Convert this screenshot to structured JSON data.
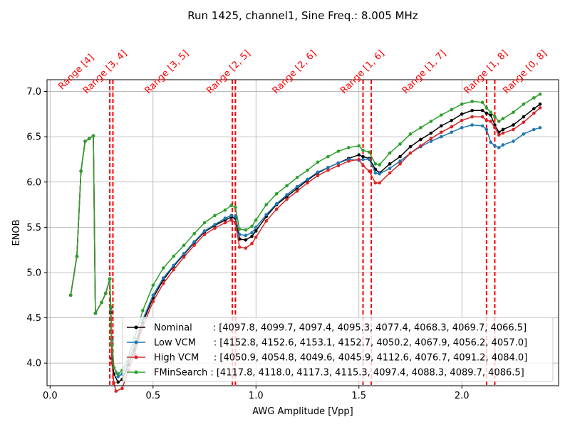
{
  "chart_data": {
    "type": "line",
    "title": "Run 1425, channel1, Sine Freq.: 8.005 MHz",
    "xlabel": "AWG Amplitude [Vpp]",
    "ylabel": "ENOB",
    "xlim": [
      -0.015,
      2.47
    ],
    "ylim": [
      3.75,
      7.13
    ],
    "xticks": [
      0.0,
      0.5,
      1.0,
      1.5,
      2.0
    ],
    "xtick_labels": [
      "0.0",
      "0.5",
      "1.0",
      "1.5",
      "2.0"
    ],
    "yticks": [
      4.0,
      4.5,
      5.0,
      5.5,
      6.0,
      6.5,
      7.0
    ],
    "ytick_labels": [
      "4.0",
      "4.5",
      "5.0",
      "5.5",
      "6.0",
      "6.5",
      "7.0"
    ],
    "grid": true,
    "legend_position": "lower-right",
    "range_lines": [
      0.29,
      0.305,
      0.885,
      0.9,
      1.52,
      1.56,
      2.12,
      2.16
    ],
    "range_lines_color": "#ff0000",
    "range_labels": [
      {
        "x": 0.15,
        "label": "Range [4]"
      },
      {
        "x": 0.29,
        "label": "Range [3, 4]"
      },
      {
        "x": 0.59,
        "label": "Range [3, 5]"
      },
      {
        "x": 0.89,
        "label": "Range [2, 5]"
      },
      {
        "x": 1.21,
        "label": "Range [2, 6]"
      },
      {
        "x": 1.54,
        "label": "Range [1, 6]"
      },
      {
        "x": 1.84,
        "label": "Range [1, 7]"
      },
      {
        "x": 2.14,
        "label": "Range [1, 8]"
      },
      {
        "x": 2.33,
        "label": "Range [0, 8]"
      }
    ],
    "series": [
      {
        "name": "Nominal",
        "legend_label": "Nominal       : [4097.8, 4099.7, 4097.4, 4095.3, 4077.4, 4068.3, 4069.7, 4066.5]",
        "color": "#000000",
        "points": [
          [
            0.1,
            4.75
          ],
          [
            0.13,
            5.18
          ],
          [
            0.15,
            6.12
          ],
          [
            0.17,
            6.45
          ],
          [
            0.19,
            6.48
          ],
          [
            0.21,
            6.51
          ],
          [
            0.22,
            4.55
          ],
          [
            0.25,
            4.67
          ],
          [
            0.27,
            4.77
          ],
          [
            0.29,
            4.93
          ],
          [
            0.295,
            4.56
          ],
          [
            0.3,
            4.05
          ],
          [
            0.31,
            3.88
          ],
          [
            0.33,
            3.79
          ],
          [
            0.35,
            3.82
          ],
          [
            0.38,
            3.98
          ],
          [
            0.41,
            4.15
          ],
          [
            0.45,
            4.45
          ],
          [
            0.5,
            4.72
          ],
          [
            0.55,
            4.92
          ],
          [
            0.6,
            5.07
          ],
          [
            0.65,
            5.2
          ],
          [
            0.7,
            5.33
          ],
          [
            0.75,
            5.45
          ],
          [
            0.8,
            5.52
          ],
          [
            0.85,
            5.58
          ],
          [
            0.88,
            5.61
          ],
          [
            0.9,
            5.6
          ],
          [
            0.92,
            5.37
          ],
          [
            0.95,
            5.36
          ],
          [
            0.98,
            5.4
          ],
          [
            1.0,
            5.46
          ],
          [
            1.05,
            5.62
          ],
          [
            1.1,
            5.75
          ],
          [
            1.15,
            5.84
          ],
          [
            1.2,
            5.93
          ],
          [
            1.25,
            6.02
          ],
          [
            1.3,
            6.1
          ],
          [
            1.35,
            6.16
          ],
          [
            1.4,
            6.21
          ],
          [
            1.45,
            6.26
          ],
          [
            1.5,
            6.3
          ],
          [
            1.52,
            6.28
          ],
          [
            1.55,
            6.26
          ],
          [
            1.58,
            6.14
          ],
          [
            1.6,
            6.1
          ],
          [
            1.65,
            6.2
          ],
          [
            1.7,
            6.28
          ],
          [
            1.75,
            6.39
          ],
          [
            1.8,
            6.47
          ],
          [
            1.85,
            6.54
          ],
          [
            1.9,
            6.62
          ],
          [
            1.95,
            6.68
          ],
          [
            2.0,
            6.75
          ],
          [
            2.05,
            6.79
          ],
          [
            2.1,
            6.79
          ],
          [
            2.12,
            6.76
          ],
          [
            2.14,
            6.74
          ],
          [
            2.16,
            6.63
          ],
          [
            2.18,
            6.55
          ],
          [
            2.2,
            6.58
          ],
          [
            2.25,
            6.63
          ],
          [
            2.3,
            6.72
          ],
          [
            2.35,
            6.81
          ],
          [
            2.38,
            6.86
          ]
        ]
      },
      {
        "name": "Low VCM",
        "legend_label": "Low VCM      : [4152.8, 4152.6, 4153.1, 4152.7, 4050.2, 4067.9, 4056.2, 4057.0]",
        "color": "#1f77b4",
        "points": [
          [
            0.1,
            4.75
          ],
          [
            0.13,
            5.18
          ],
          [
            0.15,
            6.12
          ],
          [
            0.17,
            6.45
          ],
          [
            0.19,
            6.48
          ],
          [
            0.21,
            6.51
          ],
          [
            0.22,
            4.55
          ],
          [
            0.25,
            4.67
          ],
          [
            0.27,
            4.77
          ],
          [
            0.29,
            4.93
          ],
          [
            0.295,
            4.6
          ],
          [
            0.3,
            4.25
          ],
          [
            0.31,
            3.95
          ],
          [
            0.33,
            3.85
          ],
          [
            0.35,
            3.88
          ],
          [
            0.38,
            4.02
          ],
          [
            0.41,
            4.2
          ],
          [
            0.45,
            4.48
          ],
          [
            0.5,
            4.75
          ],
          [
            0.55,
            4.94
          ],
          [
            0.6,
            5.08
          ],
          [
            0.65,
            5.21
          ],
          [
            0.7,
            5.34
          ],
          [
            0.75,
            5.46
          ],
          [
            0.8,
            5.53
          ],
          [
            0.85,
            5.6
          ],
          [
            0.88,
            5.63
          ],
          [
            0.9,
            5.62
          ],
          [
            0.92,
            5.42
          ],
          [
            0.95,
            5.41
          ],
          [
            0.98,
            5.44
          ],
          [
            1.0,
            5.5
          ],
          [
            1.05,
            5.64
          ],
          [
            1.1,
            5.76
          ],
          [
            1.15,
            5.86
          ],
          [
            1.2,
            5.95
          ],
          [
            1.25,
            6.03
          ],
          [
            1.3,
            6.11
          ],
          [
            1.35,
            6.16
          ],
          [
            1.4,
            6.21
          ],
          [
            1.45,
            6.25
          ],
          [
            1.5,
            6.24
          ],
          [
            1.52,
            6.25
          ],
          [
            1.55,
            6.25
          ],
          [
            1.58,
            6.1
          ],
          [
            1.6,
            6.09
          ],
          [
            1.65,
            6.15
          ],
          [
            1.7,
            6.23
          ],
          [
            1.75,
            6.32
          ],
          [
            1.8,
            6.39
          ],
          [
            1.85,
            6.45
          ],
          [
            1.9,
            6.5
          ],
          [
            1.95,
            6.55
          ],
          [
            2.0,
            6.6
          ],
          [
            2.05,
            6.63
          ],
          [
            2.1,
            6.62
          ],
          [
            2.12,
            6.58
          ],
          [
            2.14,
            6.44
          ],
          [
            2.16,
            6.4
          ],
          [
            2.18,
            6.38
          ],
          [
            2.2,
            6.41
          ],
          [
            2.25,
            6.45
          ],
          [
            2.3,
            6.53
          ],
          [
            2.35,
            6.58
          ],
          [
            2.38,
            6.6
          ]
        ]
      },
      {
        "name": "High VCM",
        "legend_label": "High VCM     : [4050.9, 4054.8, 4049.6, 4045.9, 4112.6, 4076.7, 4091.2, 4084.0]",
        "color": "#d62728",
        "points": [
          [
            0.1,
            4.75
          ],
          [
            0.13,
            5.18
          ],
          [
            0.15,
            6.12
          ],
          [
            0.17,
            6.45
          ],
          [
            0.19,
            6.48
          ],
          [
            0.21,
            6.51
          ],
          [
            0.22,
            4.55
          ],
          [
            0.25,
            4.67
          ],
          [
            0.27,
            4.77
          ],
          [
            0.29,
            4.93
          ],
          [
            0.295,
            4.5
          ],
          [
            0.3,
            4.0
          ],
          [
            0.31,
            3.78
          ],
          [
            0.32,
            3.69
          ],
          [
            0.35,
            3.72
          ],
          [
            0.38,
            3.92
          ],
          [
            0.41,
            4.1
          ],
          [
            0.45,
            4.4
          ],
          [
            0.5,
            4.68
          ],
          [
            0.55,
            4.88
          ],
          [
            0.6,
            5.03
          ],
          [
            0.65,
            5.17
          ],
          [
            0.7,
            5.3
          ],
          [
            0.75,
            5.42
          ],
          [
            0.8,
            5.49
          ],
          [
            0.85,
            5.55
          ],
          [
            0.88,
            5.58
          ],
          [
            0.9,
            5.55
          ],
          [
            0.92,
            5.28
          ],
          [
            0.95,
            5.27
          ],
          [
            0.98,
            5.32
          ],
          [
            1.0,
            5.39
          ],
          [
            1.05,
            5.57
          ],
          [
            1.1,
            5.7
          ],
          [
            1.15,
            5.81
          ],
          [
            1.2,
            5.9
          ],
          [
            1.25,
            5.99
          ],
          [
            1.3,
            6.07
          ],
          [
            1.35,
            6.13
          ],
          [
            1.4,
            6.18
          ],
          [
            1.45,
            6.23
          ],
          [
            1.5,
            6.25
          ],
          [
            1.52,
            6.18
          ],
          [
            1.55,
            6.12
          ],
          [
            1.58,
            5.99
          ],
          [
            1.6,
            5.99
          ],
          [
            1.65,
            6.1
          ],
          [
            1.7,
            6.2
          ],
          [
            1.75,
            6.32
          ],
          [
            1.8,
            6.4
          ],
          [
            1.85,
            6.48
          ],
          [
            1.9,
            6.55
          ],
          [
            1.95,
            6.61
          ],
          [
            2.0,
            6.68
          ],
          [
            2.05,
            6.72
          ],
          [
            2.1,
            6.72
          ],
          [
            2.12,
            6.68
          ],
          [
            2.14,
            6.67
          ],
          [
            2.16,
            6.6
          ],
          [
            2.18,
            6.52
          ],
          [
            2.2,
            6.54
          ],
          [
            2.25,
            6.58
          ],
          [
            2.3,
            6.66
          ],
          [
            2.35,
            6.76
          ],
          [
            2.38,
            6.82
          ]
        ]
      },
      {
        "name": "FMinSearch",
        "legend_label": "FMinSearch : [4117.8, 4118.0, 4117.3, 4115.3, 4097.4, 4088.3, 4089.7, 4086.5]",
        "color": "#2ca02c",
        "points": [
          [
            0.1,
            4.75
          ],
          [
            0.13,
            5.18
          ],
          [
            0.15,
            6.12
          ],
          [
            0.17,
            6.45
          ],
          [
            0.19,
            6.48
          ],
          [
            0.21,
            6.51
          ],
          [
            0.22,
            4.55
          ],
          [
            0.25,
            4.67
          ],
          [
            0.27,
            4.77
          ],
          [
            0.29,
            4.93
          ],
          [
            0.295,
            4.62
          ],
          [
            0.3,
            4.2
          ],
          [
            0.31,
            3.95
          ],
          [
            0.33,
            3.88
          ],
          [
            0.35,
            3.92
          ],
          [
            0.38,
            4.06
          ],
          [
            0.41,
            4.28
          ],
          [
            0.45,
            4.58
          ],
          [
            0.5,
            4.86
          ],
          [
            0.55,
            5.05
          ],
          [
            0.6,
            5.18
          ],
          [
            0.65,
            5.3
          ],
          [
            0.7,
            5.43
          ],
          [
            0.75,
            5.55
          ],
          [
            0.8,
            5.63
          ],
          [
            0.85,
            5.69
          ],
          [
            0.88,
            5.74
          ],
          [
            0.9,
            5.72
          ],
          [
            0.92,
            5.48
          ],
          [
            0.95,
            5.47
          ],
          [
            0.98,
            5.51
          ],
          [
            1.0,
            5.58
          ],
          [
            1.05,
            5.75
          ],
          [
            1.1,
            5.87
          ],
          [
            1.15,
            5.96
          ],
          [
            1.2,
            6.05
          ],
          [
            1.25,
            6.13
          ],
          [
            1.3,
            6.22
          ],
          [
            1.35,
            6.28
          ],
          [
            1.4,
            6.34
          ],
          [
            1.45,
            6.38
          ],
          [
            1.5,
            6.4
          ],
          [
            1.52,
            6.35
          ],
          [
            1.55,
            6.33
          ],
          [
            1.58,
            6.2
          ],
          [
            1.6,
            6.19
          ],
          [
            1.65,
            6.32
          ],
          [
            1.7,
            6.42
          ],
          [
            1.75,
            6.53
          ],
          [
            1.8,
            6.6
          ],
          [
            1.85,
            6.67
          ],
          [
            1.9,
            6.74
          ],
          [
            1.95,
            6.8
          ],
          [
            2.0,
            6.86
          ],
          [
            2.05,
            6.89
          ],
          [
            2.1,
            6.88
          ],
          [
            2.12,
            6.82
          ],
          [
            2.14,
            6.77
          ],
          [
            2.16,
            6.72
          ],
          [
            2.18,
            6.67
          ],
          [
            2.2,
            6.7
          ],
          [
            2.25,
            6.77
          ],
          [
            2.3,
            6.86
          ],
          [
            2.35,
            6.93
          ],
          [
            2.38,
            6.97
          ]
        ]
      }
    ]
  }
}
